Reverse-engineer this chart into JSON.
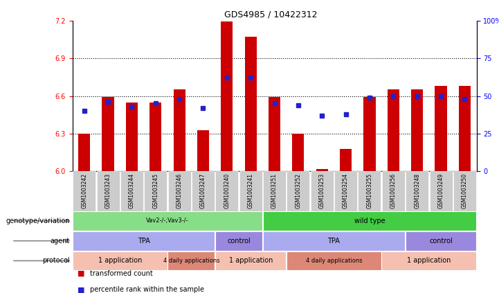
{
  "title": "GDS4985 / 10422312",
  "samples": [
    "GSM1003242",
    "GSM1003243",
    "GSM1003244",
    "GSM1003245",
    "GSM1003246",
    "GSM1003247",
    "GSM1003240",
    "GSM1003241",
    "GSM1003251",
    "GSM1003252",
    "GSM1003253",
    "GSM1003254",
    "GSM1003255",
    "GSM1003256",
    "GSM1003248",
    "GSM1003249",
    "GSM1003250"
  ],
  "red_values": [
    6.3,
    6.59,
    6.55,
    6.55,
    6.65,
    6.33,
    7.19,
    7.07,
    6.59,
    6.3,
    6.02,
    6.18,
    6.59,
    6.65,
    6.65,
    6.68,
    6.68
  ],
  "blue_values": [
    40,
    46,
    43,
    45,
    48,
    42,
    62,
    62,
    45,
    44,
    37,
    38,
    49,
    50,
    50,
    50,
    48
  ],
  "ylim_left": [
    6.0,
    7.2
  ],
  "ylim_right": [
    0,
    100
  ],
  "yticks_left": [
    6.0,
    6.3,
    6.6,
    6.9,
    7.2
  ],
  "yticks_right": [
    0,
    25,
    50,
    75,
    100
  ],
  "bar_color": "#cc0000",
  "dot_color": "#2222cc",
  "grid_color": "#000000",
  "xticklabel_bg": "#d0d0d0",
  "rows": [
    {
      "label": "genotype/variation",
      "segments": [
        {
          "text": "Vav2-/-;Vav3-/-",
          "start": 0,
          "end": 8,
          "color": "#88dd88"
        },
        {
          "text": "wild type",
          "start": 8,
          "end": 17,
          "color": "#44cc44"
        }
      ]
    },
    {
      "label": "agent",
      "segments": [
        {
          "text": "TPA",
          "start": 0,
          "end": 6,
          "color": "#aaaaee"
        },
        {
          "text": "control",
          "start": 6,
          "end": 8,
          "color": "#9988dd"
        },
        {
          "text": "TPA",
          "start": 8,
          "end": 14,
          "color": "#aaaaee"
        },
        {
          "text": "control",
          "start": 14,
          "end": 17,
          "color": "#9988dd"
        }
      ]
    },
    {
      "label": "protocol",
      "segments": [
        {
          "text": "1 application",
          "start": 0,
          "end": 4,
          "color": "#f5c0b0"
        },
        {
          "text": "4 daily applications",
          "start": 4,
          "end": 6,
          "color": "#dd8877"
        },
        {
          "text": "1 application",
          "start": 6,
          "end": 9,
          "color": "#f5c0b0"
        },
        {
          "text": "4 daily applications",
          "start": 9,
          "end": 13,
          "color": "#dd8877"
        },
        {
          "text": "1 application",
          "start": 13,
          "end": 17,
          "color": "#f5c0b0"
        }
      ]
    }
  ],
  "legend_items": [
    {
      "color": "#cc0000",
      "label": "transformed count"
    },
    {
      "color": "#2222cc",
      "label": "percentile rank within the sample"
    }
  ]
}
